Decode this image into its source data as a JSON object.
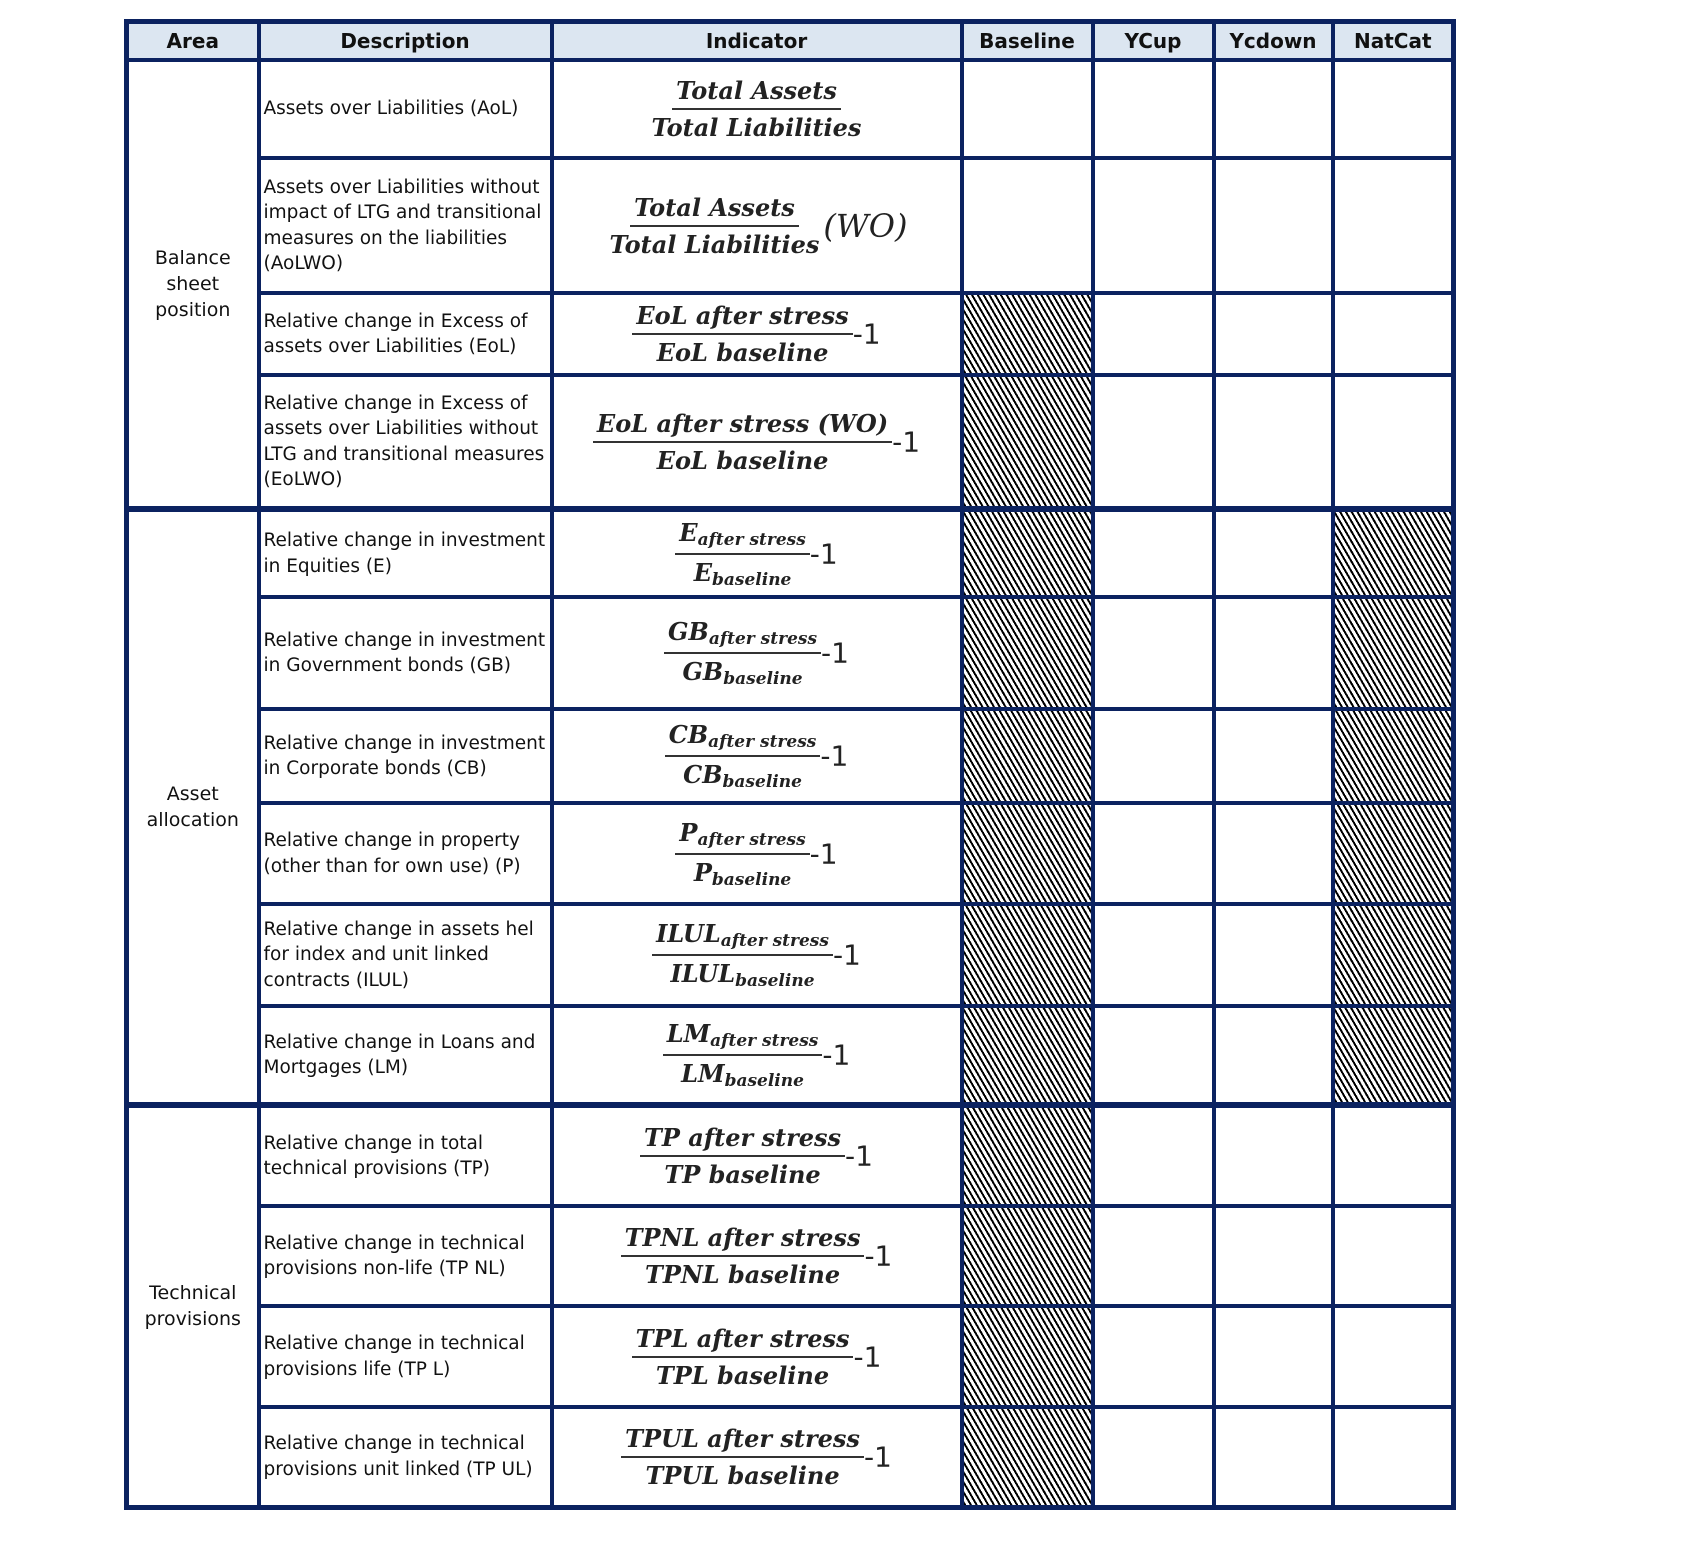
{
  "headers": [
    "Area",
    "Description",
    "Indicator",
    "Baseline",
    "YCup",
    "Ycdown",
    "NatCat"
  ],
  "colors": {
    "border": "#0b2260",
    "header_bg": "#dce6f1",
    "hatch": "#000000"
  },
  "areas": [
    {
      "label": "Balance sheet position",
      "rows": 4
    },
    {
      "label": "Asset allocation",
      "rows": 6
    },
    {
      "label": "Technical provisions",
      "rows": 4
    }
  ],
  "rows": [
    {
      "description": "Assets over Liabilities (AoL)",
      "formula": {
        "num": "Total Assets",
        "den": "Total Liabilities",
        "suffix": ""
      },
      "hatched": []
    },
    {
      "description": "Assets over Liabilities without impact of LTG and transitional measures on the liabilities (AoLWO)",
      "formula": {
        "num": "Total Assets",
        "den": "Total Liabilities",
        "suffix": "(WO)"
      },
      "hatched": []
    },
    {
      "description": "Relative change in Excess of assets over Liabilities (EoL)",
      "formula": {
        "num": "EoL after stress",
        "den": "EoL baseline",
        "suffix": "-1"
      },
      "hatched": [
        "Baseline"
      ]
    },
    {
      "description": "Relative change in Excess of assets over Liabilities without LTG and transitional measures (EoLWO)",
      "formula": {
        "num": "EoL after stress (WO)",
        "den": "EoL baseline",
        "suffix": "-1"
      },
      "hatched": [
        "Baseline"
      ]
    },
    {
      "description": "Relative change in investment in Equities (E)",
      "formula": {
        "num": "E",
        "num_sub": "after stress",
        "den": "E",
        "den_sub": "baseline",
        "suffix": "-1"
      },
      "hatched": [
        "Baseline",
        "NatCat"
      ]
    },
    {
      "description": "Relative change in investment in Government bonds (GB)",
      "formula": {
        "num": "GB",
        "num_sub": "after stress",
        "den": "GB",
        "den_sub": "baseline",
        "suffix": "-1"
      },
      "hatched": [
        "Baseline",
        "NatCat"
      ]
    },
    {
      "description": "Relative change in investment in Corporate bonds (CB)",
      "formula": {
        "num": "CB",
        "num_sub": "after stress",
        "den": "CB",
        "den_sub": "baseline",
        "suffix": "-1"
      },
      "hatched": [
        "Baseline",
        "NatCat"
      ]
    },
    {
      "description": "Relative change in property (other than for own use) (P)",
      "formula": {
        "num": "P",
        "num_sub": "after stress",
        "den": "P",
        "den_sub": "baseline",
        "suffix": "-1"
      },
      "hatched": [
        "Baseline",
        "NatCat"
      ]
    },
    {
      "description": "Relative change in assets hel for index and unit linked contracts (ILUL)",
      "formula": {
        "num": "ILUL",
        "num_sub": "after stress",
        "den": "ILUL",
        "den_sub": "baseline",
        "suffix": "-1"
      },
      "hatched": [
        "Baseline",
        "NatCat"
      ]
    },
    {
      "description": "Relative change in Loans and Mortgages (LM)",
      "formula": {
        "num": "LM",
        "num_sub": "after stress",
        "den": "LM",
        "den_sub": "baseline",
        "suffix": "-1"
      },
      "hatched": [
        "Baseline",
        "NatCat"
      ]
    },
    {
      "description": "Relative change in total technical provisions (TP)",
      "formula": {
        "num": "TP after stress",
        "den": "TP baseline",
        "suffix": "-1"
      },
      "hatched": [
        "Baseline"
      ]
    },
    {
      "description": "Relative change in technical provisions non-life (TP NL)",
      "formula": {
        "num": "TPNL after stress",
        "den": "TPNL baseline",
        "suffix": "-1"
      },
      "hatched": [
        "Baseline"
      ]
    },
    {
      "description": "Relative change in technical provisions life (TP L)",
      "formula": {
        "num": "TPL after stress",
        "den": "TPL baseline",
        "suffix": "-1"
      },
      "hatched": [
        "Baseline"
      ]
    },
    {
      "description": "Relative change in technical provisions unit linked (TP UL)",
      "formula": {
        "num": "TPUL after stress",
        "den": "TPUL baseline",
        "suffix": "-1"
      },
      "hatched": [
        "Baseline"
      ]
    }
  ]
}
